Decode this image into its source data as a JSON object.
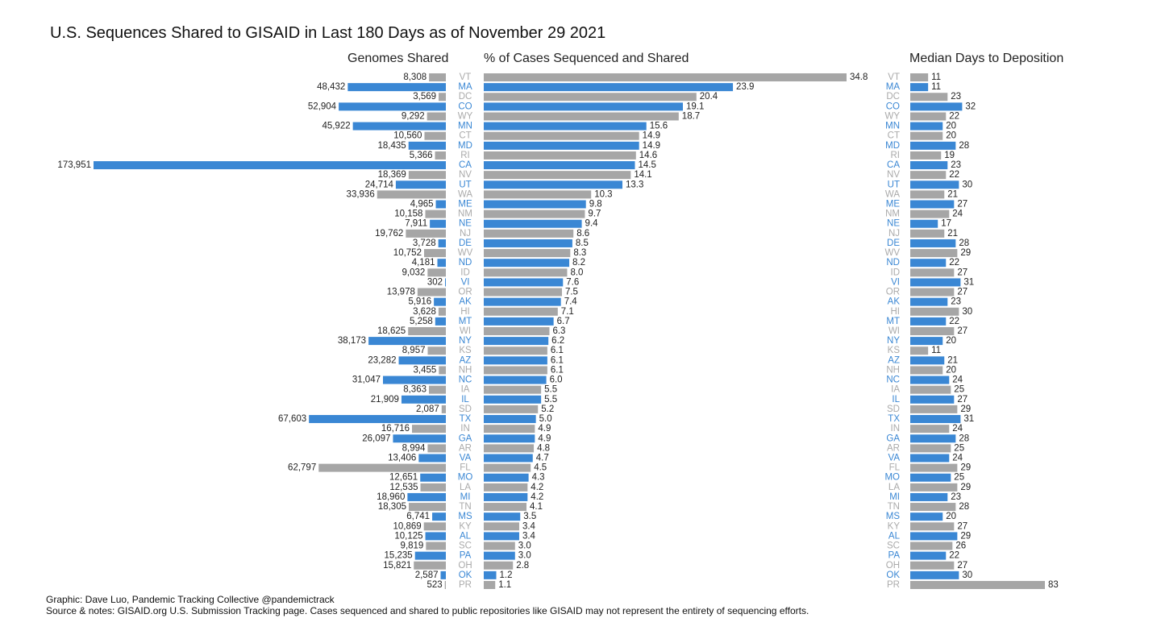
{
  "title": "U.S. Sequences Shared to GISAID in Last 180 Days as of November 29 2021",
  "footer": {
    "credit": "Graphic: Dave Luo, Pandemic Tracking Collective @pandemictrack",
    "source": "Source & notes: GISAID.org U.S. Submission Tracking page. Cases sequenced and shared to public repositories like GISAID may not represent the entirety of sequencing efforts."
  },
  "colors": {
    "highlight": "#3a87d4",
    "default": "#a6a6a6",
    "label_default": "#aaaaaa"
  },
  "chart_data": {
    "type": "bar",
    "orientation": "horizontal",
    "categories": [
      "VT",
      "MA",
      "DC",
      "CO",
      "WY",
      "MN",
      "CT",
      "MD",
      "RI",
      "CA",
      "NV",
      "UT",
      "WA",
      "ME",
      "NM",
      "NE",
      "NJ",
      "DE",
      "WV",
      "ND",
      "ID",
      "VI",
      "OR",
      "AK",
      "HI",
      "MT",
      "WI",
      "NY",
      "KS",
      "AZ",
      "NH",
      "NC",
      "IA",
      "IL",
      "SD",
      "TX",
      "IN",
      "GA",
      "AR",
      "VA",
      "FL",
      "MO",
      "LA",
      "MI",
      "TN",
      "MS",
      "KY",
      "AL",
      "SC",
      "PA",
      "OH",
      "OK",
      "PR"
    ],
    "highlighted": [
      false,
      true,
      false,
      true,
      false,
      true,
      false,
      true,
      false,
      true,
      false,
      true,
      false,
      true,
      false,
      true,
      false,
      true,
      false,
      true,
      false,
      true,
      false,
      true,
      false,
      true,
      false,
      true,
      false,
      true,
      false,
      true,
      false,
      true,
      false,
      true,
      false,
      true,
      false,
      true,
      false,
      true,
      false,
      true,
      false,
      true,
      false,
      true,
      false,
      true,
      false,
      true,
      false
    ],
    "panels": [
      {
        "title": "Genomes Shared",
        "direction": "left",
        "labels": [
          "8,308",
          "48,432",
          "3,569",
          "52,904",
          "9,292",
          "45,922",
          "10,560",
          "18,435",
          "5,366",
          "173,951",
          "18,369",
          "24,714",
          "33,936",
          "4,965",
          "10,158",
          "7,911",
          "19,762",
          "3,728",
          "10,752",
          "4,181",
          "9,032",
          "302",
          "13,978",
          "5,916",
          "3,628",
          "5,258",
          "18,625",
          "38,173",
          "8,957",
          "23,282",
          "3,455",
          "31,047",
          "8,363",
          "21,909",
          "2,087",
          "67,603",
          "16,716",
          "26,097",
          "8,994",
          "13,406",
          "62,797",
          "12,651",
          "12,535",
          "18,960",
          "18,305",
          "6,741",
          "10,869",
          "10,125",
          "9,819",
          "15,235",
          "15,821",
          "2,587",
          "523"
        ],
        "values": [
          8308,
          48432,
          3569,
          52904,
          9292,
          45922,
          10560,
          18435,
          5366,
          173951,
          18369,
          24714,
          33936,
          4965,
          10158,
          7911,
          19762,
          3728,
          10752,
          4181,
          9032,
          302,
          13978,
          5916,
          3628,
          5258,
          18625,
          38173,
          8957,
          23282,
          3455,
          31047,
          8363,
          21909,
          2087,
          67603,
          16716,
          26097,
          8994,
          13406,
          62797,
          12651,
          12535,
          18960,
          18305,
          6741,
          10869,
          10125,
          9819,
          15235,
          15821,
          2587,
          523
        ],
        "xlim": [
          0,
          173951
        ]
      },
      {
        "title": "% of Cases Sequenced and Shared",
        "direction": "right",
        "labels": [
          "34.8",
          "23.9",
          "20.4",
          "19.1",
          "18.7",
          "15.6",
          "14.9",
          "14.9",
          "14.6",
          "14.5",
          "14.1",
          "13.3",
          "10.3",
          "9.8",
          "9.7",
          "9.4",
          "8.6",
          "8.5",
          "8.3",
          "8.2",
          "8.0",
          "7.6",
          "7.5",
          "7.4",
          "7.1",
          "6.7",
          "6.3",
          "6.2",
          "6.1",
          "6.1",
          "6.1",
          "6.0",
          "5.5",
          "5.5",
          "5.2",
          "5.0",
          "4.9",
          "4.9",
          "4.8",
          "4.7",
          "4.5",
          "4.3",
          "4.2",
          "4.2",
          "4.1",
          "3.5",
          "3.4",
          "3.4",
          "3.0",
          "3.0",
          "2.8",
          "1.2",
          "1.1"
        ],
        "values": [
          34.8,
          23.9,
          20.4,
          19.1,
          18.7,
          15.6,
          14.9,
          14.9,
          14.6,
          14.5,
          14.1,
          13.3,
          10.3,
          9.8,
          9.7,
          9.4,
          8.6,
          8.5,
          8.3,
          8.2,
          8.0,
          7.6,
          7.5,
          7.4,
          7.1,
          6.7,
          6.3,
          6.2,
          6.1,
          6.1,
          6.1,
          6.0,
          5.5,
          5.5,
          5.2,
          5.0,
          4.9,
          4.9,
          4.8,
          4.7,
          4.5,
          4.3,
          4.2,
          4.2,
          4.1,
          3.5,
          3.4,
          3.4,
          3.0,
          3.0,
          2.8,
          1.2,
          1.1
        ],
        "xlim": [
          0,
          34.8
        ]
      },
      {
        "title": "Median Days to Deposition",
        "direction": "right",
        "labels": [
          "11",
          "11",
          "23",
          "32",
          "22",
          "20",
          "20",
          "28",
          "19",
          "23",
          "22",
          "30",
          "21",
          "27",
          "24",
          "17",
          "21",
          "28",
          "29",
          "22",
          "27",
          "31",
          "27",
          "23",
          "30",
          "22",
          "27",
          "20",
          "11",
          "21",
          "20",
          "24",
          "25",
          "27",
          "29",
          "31",
          "24",
          "28",
          "25",
          "24",
          "29",
          "25",
          "29",
          "23",
          "28",
          "20",
          "27",
          "29",
          "26",
          "22",
          "27",
          "30",
          "83"
        ],
        "values": [
          11,
          11,
          23,
          32,
          22,
          20,
          20,
          28,
          19,
          23,
          22,
          30,
          21,
          27,
          24,
          17,
          21,
          28,
          29,
          22,
          27,
          31,
          27,
          23,
          30,
          22,
          27,
          20,
          11,
          21,
          20,
          24,
          25,
          27,
          29,
          31,
          24,
          28,
          25,
          24,
          29,
          25,
          29,
          23,
          28,
          20,
          27,
          29,
          26,
          22,
          27,
          30,
          83
        ],
        "xlim": [
          0,
          83
        ]
      }
    ]
  }
}
